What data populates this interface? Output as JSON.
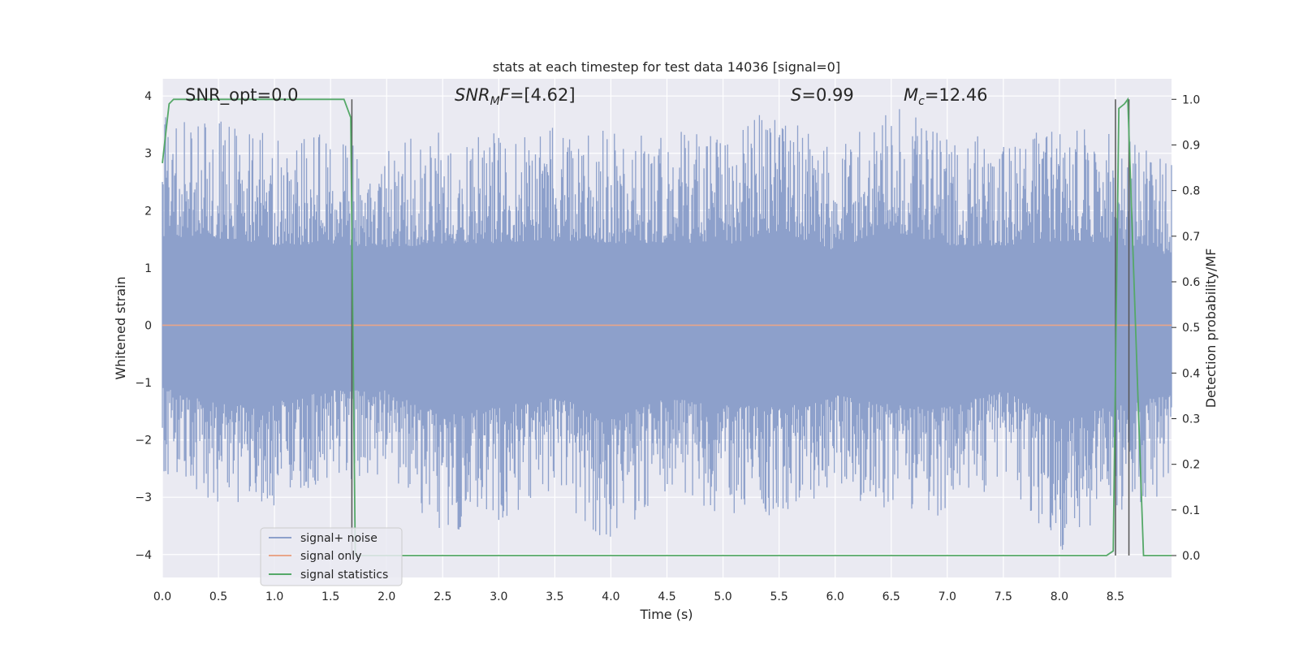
{
  "chart_data": {
    "type": "line",
    "title": "stats at each timestep for test data 14036 [signal=0]",
    "xlabel": "Time (s)",
    "ylabel": "Whitened strain",
    "ylabel_right": "Detection probability/MF",
    "xlim": [
      0.0,
      9.0
    ],
    "ylim": [
      -4.4,
      4.3
    ],
    "ylim_right": [
      -0.048,
      1.045
    ],
    "x_ticks": [
      0.0,
      0.5,
      1.0,
      1.5,
      2.0,
      2.5,
      3.0,
      3.5,
      4.0,
      4.5,
      5.0,
      5.5,
      6.0,
      6.5,
      7.0,
      7.5,
      8.0,
      8.5
    ],
    "y_ticks": [
      -4,
      -3,
      -2,
      -1,
      0,
      1,
      2,
      3,
      4
    ],
    "y_tick_labels": [
      "−4",
      "−3",
      "−2",
      "−1",
      "0",
      "1",
      "2",
      "3",
      "4"
    ],
    "y_right_ticks": [
      0.0,
      0.1,
      0.2,
      0.3,
      0.4,
      0.5,
      0.6,
      0.7,
      0.8,
      0.9,
      1.0
    ],
    "grid": true,
    "legend_position": "lower-left",
    "annotations": [
      {
        "text": "SNR_opt=0.0",
        "x": 0.2
      },
      {
        "text": "SNR_MF=[4.62]",
        "x": 2.6
      },
      {
        "text": "S=0.99",
        "x": 5.6
      },
      {
        "text": "M_c=12.46",
        "x": 6.6
      }
    ],
    "vertical_lines_s": [
      1.69,
      8.5,
      8.62
    ],
    "series": [
      {
        "name": "signal+ noise",
        "color": "#8da0cb",
        "axis": "left",
        "kind": "noise",
        "envelope": {
          "x": [
            0.0,
            0.5,
            1.0,
            1.5,
            2.0,
            2.5,
            3.0,
            3.5,
            4.0,
            4.5,
            5.0,
            5.5,
            6.0,
            6.5,
            7.0,
            7.5,
            8.0,
            8.5,
            9.0
          ],
          "max": [
            3.7,
            3.6,
            3.3,
            3.4,
            3.2,
            3.4,
            3.4,
            3.5,
            3.4,
            3.4,
            3.3,
            3.9,
            3.1,
            3.9,
            3.3,
            3.3,
            3.5,
            3.4,
            2.9
          ],
          "min": [
            -2.6,
            -3.2,
            -3.2,
            -2.7,
            -2.7,
            -3.7,
            -3.4,
            -2.9,
            -3.9,
            -3.0,
            -3.3,
            -3.4,
            -2.9,
            -3.3,
            -3.4,
            -2.7,
            -4.0,
            -3.3,
            -2.9
          ]
        }
      },
      {
        "name": "signal only",
        "color": "#e8a58a",
        "axis": "left",
        "x": [
          0.0,
          9.0
        ],
        "y": [
          0.0,
          0.0
        ]
      },
      {
        "name": "signal statistics",
        "color": "#55a868",
        "axis": "right",
        "x": [
          0.0,
          0.06,
          0.1,
          1.62,
          1.68,
          1.72,
          1.74,
          8.42,
          8.48,
          8.53,
          8.58,
          8.61,
          8.7,
          8.75,
          9.0
        ],
        "y": [
          0.86,
          0.99,
          1.0,
          1.0,
          0.96,
          0.0,
          0.0,
          0.0,
          0.01,
          0.98,
          0.99,
          1.0,
          0.35,
          0.0,
          0.0
        ]
      }
    ]
  }
}
